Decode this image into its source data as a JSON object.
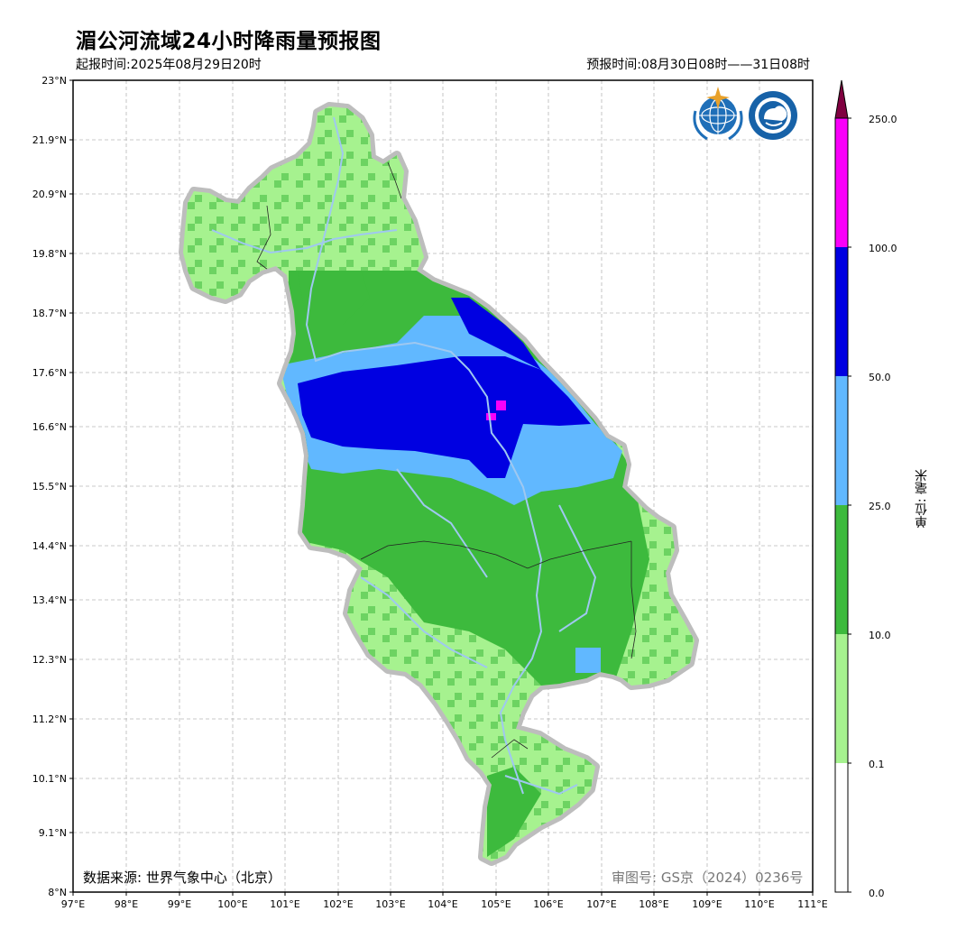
{
  "title": "湄公河流域24小时降雨量预报图",
  "issue_time": "起报时间:2025年08月29日20时",
  "forecast_time": "预报时间:08月30日08时——31日08时",
  "source": "数据来源: 世界气象中心（北京）",
  "review_no": "审图号: GS京（2024）0236号",
  "lat_ticks": [
    "23°N",
    "21.9°N",
    "20.9°N",
    "19.8°N",
    "18.7°N",
    "17.6°N",
    "16.6°N",
    "15.5°N",
    "14.4°N",
    "13.4°N",
    "12.3°N",
    "11.2°N",
    "10.1°N",
    "9.1°N",
    "8°N"
  ],
  "lon_ticks": [
    "97°E",
    "98°E",
    "99°E",
    "100°E",
    "101°E",
    "102°E",
    "103°E",
    "104°E",
    "105°E",
    "106°E",
    "107°E",
    "108°E",
    "109°E",
    "110°E",
    "111°E"
  ],
  "legend": {
    "unit": "单位: 毫米",
    "levels": [
      "250.0",
      "100.0",
      "50.0",
      "25.0",
      "10.0",
      "0.1",
      "0.0"
    ],
    "colors": [
      "#ffffff",
      "#a6f28f",
      "#3dba3d",
      "#61b8ff",
      "#0000e1",
      "#fa00fa",
      "#800040"
    ]
  },
  "logos": [
    "wmo-logo",
    "cma-logo"
  ]
}
